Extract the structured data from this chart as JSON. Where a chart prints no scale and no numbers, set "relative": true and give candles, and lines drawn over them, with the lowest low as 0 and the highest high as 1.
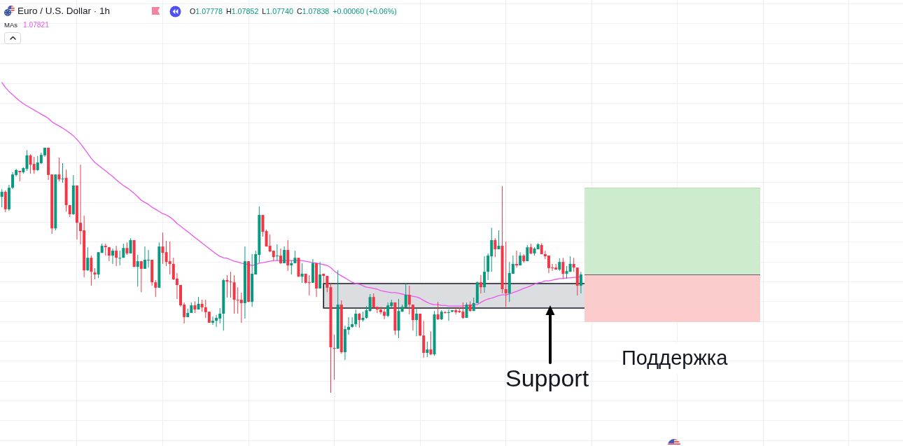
{
  "chart_data": {
    "type": "candlestick",
    "title": "Euro / U.S. Dollar · 1h",
    "categories": [
      null,
      null,
      null,
      null,
      null,
      null,
      null,
      null,
      null,
      null,
      null,
      null,
      null,
      null,
      null,
      null,
      null,
      null,
      null,
      null,
      null,
      null,
      null,
      null,
      null,
      null,
      null,
      null,
      null,
      null,
      null,
      null,
      null,
      null,
      null,
      null,
      null,
      null,
      null,
      null,
      null,
      null,
      null,
      null,
      null,
      null,
      null,
      null,
      null,
      null,
      null,
      null,
      null,
      null,
      null,
      null,
      null,
      null,
      null,
      null,
      null,
      null,
      null,
      null,
      null,
      null,
      null,
      null,
      null,
      null,
      null,
      null,
      null,
      null,
      null,
      null,
      null,
      null,
      null,
      null,
      null,
      null,
      null,
      null,
      null,
      null,
      null,
      null,
      null,
      null,
      null,
      null,
      null,
      null,
      null,
      null,
      null,
      null,
      null,
      null,
      null,
      null,
      null,
      null,
      null,
      null,
      null,
      null,
      null,
      null,
      null,
      null,
      null,
      null,
      null,
      null,
      null,
      null,
      null,
      null,
      null,
      null,
      null,
      null,
      null,
      null,
      null,
      null,
      null,
      null,
      null,
      null,
      null,
      null,
      null,
      null,
      null,
      null,
      null,
      null,
      null,
      null,
      null,
      null,
      null,
      null,
      null,
      null,
      null,
      null,
      null,
      null,
      null,
      null,
      null,
      null,
      null,
      null,
      null,
      null,
      null,
      null,
      null
    ],
    "ohlc": [
      [
        0.8,
        0.831,
        0.757,
        0.82
      ],
      [
        0.82,
        0.826,
        0.737,
        0.749
      ],
      [
        0.749,
        0.849,
        0.743,
        0.837
      ],
      [
        0.837,
        0.9,
        0.831,
        0.891
      ],
      [
        0.889,
        0.914,
        0.883,
        0.909
      ],
      [
        0.906,
        0.906,
        0.863,
        0.9
      ],
      [
        0.9,
        0.92,
        0.894,
        0.917
      ],
      [
        0.914,
        0.991,
        0.906,
        0.969
      ],
      [
        0.969,
        0.974,
        0.894,
        0.931
      ],
      [
        0.934,
        0.963,
        0.894,
        0.909
      ],
      [
        0.909,
        0.966,
        0.906,
        0.94
      ],
      [
        0.937,
        0.98,
        0.934,
        0.971
      ],
      [
        0.969,
        1,
        0.963,
        1
      ],
      [
        1,
        1,
        0.869,
        0.889
      ],
      [
        0.891,
        0.891,
        0.649,
        0.671
      ],
      [
        0.671,
        0.891,
        0.663,
        0.891
      ],
      [
        0.891,
        0.96,
        0.863,
        0.871
      ],
      [
        0.871,
        0.937,
        0.857,
        0.874
      ],
      [
        0.877,
        0.911,
        0.74,
        0.766
      ],
      [
        0.766,
        0.766,
        0.717,
        0.729
      ],
      [
        0.729,
        0.889,
        0.726,
        0.846
      ],
      [
        0.846,
        0.846,
        0.626,
        0.694
      ],
      [
        0.694,
        0.931,
        0.606,
        0.66
      ],
      [
        0.663,
        0.723,
        0.471,
        0.5
      ],
      [
        0.5,
        0.594,
        0.497,
        0.551
      ],
      [
        0.551,
        0.56,
        0.437,
        0.494
      ],
      [
        0.491,
        0.509,
        0.463,
        0.483
      ],
      [
        0.483,
        0.574,
        0.469,
        0.574
      ],
      [
        0.571,
        0.609,
        0.571,
        0.6
      ],
      [
        0.6,
        0.609,
        0.56,
        0.594
      ],
      [
        0.594,
        0.594,
        0.537,
        0.56
      ],
      [
        0.56,
        0.589,
        0.526,
        0.58
      ],
      [
        0.58,
        0.6,
        0.517,
        0.551
      ],
      [
        0.549,
        0.58,
        0.52,
        0.551
      ],
      [
        0.551,
        0.609,
        0.551,
        0.591
      ],
      [
        0.591,
        0.614,
        0.563,
        0.569
      ],
      [
        0.569,
        0.631,
        0.569,
        0.623
      ],
      [
        0.623,
        0.623,
        0.514,
        0.514
      ],
      [
        0.514,
        0.563,
        0.434,
        0.537
      ],
      [
        0.537,
        0.537,
        0.411,
        0.506
      ],
      [
        0.506,
        0.597,
        0.506,
        0.543
      ],
      [
        0.54,
        0.583,
        0.511,
        0.543
      ],
      [
        0.543,
        0.543,
        0.437,
        0.451
      ],
      [
        0.451,
        0.46,
        0.391,
        0.429
      ],
      [
        0.429,
        0.614,
        0.429,
        0.597
      ],
      [
        0.597,
        0.654,
        0.526,
        0.571
      ],
      [
        0.574,
        0.62,
        0.517,
        0.534
      ],
      [
        0.537,
        0.617,
        0.483,
        0.526
      ],
      [
        0.526,
        0.551,
        0.46,
        0.463
      ],
      [
        0.466,
        0.489,
        0.383,
        0.44
      ],
      [
        0.44,
        0.44,
        0.351,
        0.357
      ],
      [
        0.36,
        0.369,
        0.283,
        0.309
      ],
      [
        0.309,
        0.343,
        0.309,
        0.326
      ],
      [
        0.326,
        0.369,
        0.326,
        0.357
      ],
      [
        0.357,
        0.374,
        0.326,
        0.34
      ],
      [
        0.34,
        0.391,
        0.34,
        0.363
      ],
      [
        0.363,
        0.38,
        0.331,
        0.349
      ],
      [
        0.349,
        0.38,
        0.306,
        0.329
      ],
      [
        0.331,
        0.331,
        0.286,
        0.286
      ],
      [
        0.286,
        0.311,
        0.277,
        0.294
      ],
      [
        0.294,
        0.317,
        0.269,
        0.306
      ],
      [
        0.303,
        0.346,
        0.283,
        0.323
      ],
      [
        0.323,
        0.466,
        0.254,
        0.46
      ],
      [
        0.46,
        0.48,
        0.389,
        0.454
      ],
      [
        0.454,
        0.494,
        0.389,
        0.451
      ],
      [
        0.451,
        0.48,
        0.323,
        0.38
      ],
      [
        0.38,
        0.431,
        0.323,
        0.377
      ],
      [
        0.38,
        0.409,
        0.286,
        0.366
      ],
      [
        0.366,
        0.597,
        0.303,
        0.537
      ],
      [
        0.537,
        0.537,
        0.371,
        0.371
      ],
      [
        0.371,
        0.566,
        0.351,
        0.486
      ],
      [
        0.483,
        0.58,
        0.483,
        0.566
      ],
      [
        0.563,
        0.76,
        0.531,
        0.726
      ],
      [
        0.726,
        0.726,
        0.637,
        0.657
      ],
      [
        0.66,
        0.666,
        0.597,
        0.597
      ],
      [
        0.6,
        0.646,
        0.574,
        0.577
      ],
      [
        0.58,
        0.58,
        0.54,
        0.554
      ],
      [
        0.557,
        0.606,
        0.54,
        0.56
      ],
      [
        0.56,
        0.589,
        0.526,
        0.529
      ],
      [
        0.529,
        0.597,
        0.529,
        0.583
      ],
      [
        0.583,
        0.623,
        0.497,
        0.52
      ],
      [
        0.52,
        0.54,
        0.483,
        0.529
      ],
      [
        0.529,
        0.58,
        0.529,
        0.551
      ],
      [
        0.551,
        0.551,
        0.474,
        0.474
      ],
      [
        0.474,
        0.529,
        0.449,
        0.486
      ],
      [
        0.486,
        0.486,
        0.446,
        0.449
      ],
      [
        0.451,
        0.48,
        0.397,
        0.449
      ],
      [
        0.449,
        0.546,
        0.449,
        0.529
      ],
      [
        0.529,
        0.529,
        0.391,
        0.426
      ],
      [
        0.426,
        0.534,
        0.426,
        0.483
      ],
      [
        0.486,
        0.486,
        0.449,
        0.477
      ],
      [
        0.477,
        0.477,
        0.411,
        0.429
      ],
      [
        0.431,
        0.446,
        0,
        0.186
      ],
      [
        0.183,
        0.237,
        0.054,
        0.18
      ],
      [
        0.18,
        0.5,
        0.18,
        0.36
      ],
      [
        0.36,
        0.377,
        0.16,
        0.166
      ],
      [
        0.166,
        0.274,
        0.134,
        0.26
      ],
      [
        0.257,
        0.309,
        0.237,
        0.269
      ],
      [
        0.269,
        0.309,
        0.266,
        0.28
      ],
      [
        0.28,
        0.34,
        0.269,
        0.323
      ],
      [
        0.323,
        0.326,
        0.266,
        0.297
      ],
      [
        0.297,
        0.331,
        0.291,
        0.306
      ],
      [
        0.306,
        0.354,
        0.303,
        0.337
      ],
      [
        0.334,
        0.403,
        0.331,
        0.391
      ],
      [
        0.391,
        0.406,
        0.346,
        0.349
      ],
      [
        0.351,
        0.351,
        0.326,
        0.34
      ],
      [
        0.34,
        0.351,
        0.32,
        0.329
      ],
      [
        0.331,
        0.346,
        0.3,
        0.314
      ],
      [
        0.314,
        0.369,
        0.309,
        0.357
      ],
      [
        0.354,
        0.38,
        0.346,
        0.369
      ],
      [
        0.369,
        0.369,
        0.237,
        0.254
      ],
      [
        0.254,
        0.383,
        0.223,
        0.334
      ],
      [
        0.331,
        0.36,
        0.331,
        0.351
      ],
      [
        0.349,
        0.446,
        0.346,
        0.4
      ],
      [
        0.4,
        0.437,
        0.32,
        0.36
      ],
      [
        0.36,
        0.36,
        0.254,
        0.297
      ],
      [
        0.297,
        0.346,
        0.231,
        0.323
      ],
      [
        0.323,
        0.323,
        0.231,
        0.234
      ],
      [
        0.234,
        0.294,
        0.143,
        0.163
      ],
      [
        0.163,
        0.209,
        0.146,
        0.177
      ],
      [
        0.177,
        0.251,
        0.154,
        0.157
      ],
      [
        0.157,
        0.334,
        0.151,
        0.32
      ],
      [
        0.32,
        0.371,
        0.297,
        0.3
      ],
      [
        0.3,
        0.337,
        0.297,
        0.331
      ],
      [
        0.329,
        0.334,
        0.323,
        0.326
      ],
      [
        0.326,
        0.34,
        0.294,
        0.329
      ],
      [
        0.331,
        0.337,
        0.329,
        0.337
      ],
      [
        0.337,
        0.346,
        0.32,
        0.329
      ],
      [
        0.334,
        0.349,
        0.326,
        0.329
      ],
      [
        0.331,
        0.369,
        0.303,
        0.306
      ],
      [
        0.306,
        0.369,
        0.306,
        0.36
      ],
      [
        0.36,
        0.374,
        0.331,
        0.334
      ],
      [
        0.334,
        0.389,
        0.334,
        0.366
      ],
      [
        0.366,
        0.454,
        0.366,
        0.451
      ],
      [
        0.451,
        0.48,
        0.406,
        0.431
      ],
      [
        0.431,
        0.557,
        0.409,
        0.494
      ],
      [
        0.494,
        0.569,
        0.46,
        0.56
      ],
      [
        0.557,
        0.674,
        0.494,
        0.623
      ],
      [
        0.623,
        0.631,
        0.554,
        0.586
      ],
      [
        0.586,
        0.663,
        0.586,
        0.6
      ],
      [
        0.6,
        0.843,
        0.406,
        0.423
      ],
      [
        0.423,
        0.617,
        0.351,
        0.406
      ],
      [
        0.406,
        0.534,
        0.371,
        0.489
      ],
      [
        0.486,
        0.56,
        0.486,
        0.526
      ],
      [
        0.526,
        0.58,
        0.511,
        0.52
      ],
      [
        0.52,
        0.574,
        0.52,
        0.56
      ],
      [
        0.56,
        0.566,
        0.531,
        0.537
      ],
      [
        0.537,
        0.603,
        0.537,
        0.594
      ],
      [
        0.594,
        0.609,
        0.566,
        0.569
      ],
      [
        0.569,
        0.594,
        0.56,
        0.589
      ],
      [
        0.586,
        0.611,
        0.586,
        0.606
      ],
      [
        0.603,
        0.611,
        0.566,
        0.566
      ],
      [
        0.566,
        0.58,
        0.546,
        0.557
      ],
      [
        0.56,
        0.56,
        0.489,
        0.509
      ],
      [
        0.511,
        0.526,
        0.497,
        0.509
      ],
      [
        0.511,
        0.526,
        0.503,
        0.503
      ],
      [
        0.503,
        0.549,
        0.497,
        0.534
      ],
      [
        0.534,
        0.551,
        0.466,
        0.486
      ],
      [
        0.486,
        0.517,
        0.466,
        0.497
      ],
      [
        0.494,
        0.557,
        0.494,
        0.526
      ],
      [
        0.526,
        0.551,
        0.494,
        0.511
      ],
      [
        0.511,
        0.511,
        0.397,
        0.437
      ],
      [
        0.437,
        0.494,
        0.406,
        0.483
      ]
    ],
    "colors": [
      "#089981",
      "#f23645",
      "#089981",
      "#089981",
      "#089981",
      "#f23645",
      "#089981",
      "#089981",
      "#f23645",
      "#f23645",
      "#089981",
      "#089981",
      "#089981",
      "#f23645",
      "#f23645",
      "#089981",
      "#f23645",
      "#089981",
      "#f23645",
      "#f23645",
      "#089981",
      "#f23645",
      "#f23645",
      "#f23645",
      "#089981",
      "#f23645",
      "#f23645",
      "#089981",
      "#089981",
      "#f23645",
      "#f23645",
      "#089981",
      "#f23645",
      "#089981",
      "#089981",
      "#f23645",
      "#089981",
      "#f23645",
      "#089981",
      "#f23645",
      "#089981",
      "#089981",
      "#f23645",
      "#f23645",
      "#089981",
      "#f23645",
      "#f23645",
      "#f23645",
      "#f23645",
      "#f23645",
      "#f23645",
      "#f23645",
      "#089981",
      "#089981",
      "#f23645",
      "#089981",
      "#f23645",
      "#f23645",
      "#f23645",
      "#089981",
      "#089981",
      "#089981",
      "#089981",
      "#f23645",
      "#f23645",
      "#f23645",
      "#f23645",
      "#f23645",
      "#089981",
      "#f23645",
      "#089981",
      "#089981",
      "#089981",
      "#f23645",
      "#f23645",
      "#f23645",
      "#f23645",
      "#089981",
      "#f23645",
      "#089981",
      "#f23645",
      "#089981",
      "#089981",
      "#f23645",
      "#089981",
      "#f23645",
      "#f23645",
      "#089981",
      "#f23645",
      "#089981",
      "#f23645",
      "#f23645",
      "#f23645",
      "#f23645",
      "#089981",
      "#f23645",
      "#089981",
      "#089981",
      "#089981",
      "#089981",
      "#f23645",
      "#089981",
      "#089981",
      "#089981",
      "#f23645",
      "#f23645",
      "#f23645",
      "#f23645",
      "#089981",
      "#089981",
      "#f23645",
      "#089981",
      "#089981",
      "#089981",
      "#f23645",
      "#f23645",
      "#089981",
      "#f23645",
      "#f23645",
      "#089981",
      "#f23645",
      "#089981",
      "#f23645",
      "#089981",
      "#f23645",
      "#089981",
      "#089981",
      "#f23645",
      "#f23645",
      "#f23645",
      "#089981",
      "#f23645",
      "#089981",
      "#089981",
      "#f23645",
      "#089981",
      "#089981",
      "#089981",
      "#f23645",
      "#089981",
      "#f23645",
      "#f23645",
      "#089981",
      "#089981",
      "#f23645",
      "#089981",
      "#f23645",
      "#089981",
      "#f23645",
      "#089981",
      "#089981",
      "#f23645",
      "#f23645",
      "#f23645",
      "#f23645",
      "#f23645",
      "#089981",
      "#f23645",
      "#089981",
      "#089981",
      "#f23645",
      "#f23645",
      "#089981"
    ],
    "series": [
      {
        "name": "MAs",
        "type": "line",
        "color": "#ee55ee",
        "values": [
          1.266,
          1.246,
          1.229,
          1.217,
          1.203,
          1.191,
          1.18,
          1.171,
          1.163,
          1.154,
          1.146,
          1.137,
          1.129,
          1.12,
          1.106,
          1.097,
          1.089,
          1.08,
          1.071,
          1.06,
          1.049,
          1.034,
          1.017,
          0.997,
          0.977,
          0.957,
          0.94,
          0.929,
          0.917,
          0.906,
          0.894,
          0.883,
          0.869,
          0.857,
          0.846,
          0.837,
          0.826,
          0.814,
          0.8,
          0.786,
          0.777,
          0.769,
          0.757,
          0.749,
          0.74,
          0.731,
          0.726,
          0.717,
          0.706,
          0.691,
          0.68,
          0.669,
          0.657,
          0.646,
          0.634,
          0.623,
          0.611,
          0.6,
          0.589,
          0.577,
          0.566,
          0.557,
          0.551,
          0.549,
          0.543,
          0.537,
          0.534,
          0.529,
          0.526,
          0.523,
          0.52,
          0.523,
          0.529,
          0.531,
          0.534,
          0.537,
          0.54,
          0.54,
          0.54,
          0.54,
          0.54,
          0.54,
          0.54,
          0.54,
          0.54,
          0.537,
          0.534,
          0.531,
          0.529,
          0.526,
          0.523,
          0.52,
          0.511,
          0.497,
          0.486,
          0.477,
          0.469,
          0.46,
          0.451,
          0.446,
          0.443,
          0.437,
          0.431,
          0.429,
          0.426,
          0.423,
          0.417,
          0.414,
          0.411,
          0.409,
          0.409,
          0.406,
          0.403,
          0.4,
          0.397,
          0.394,
          0.391,
          0.386,
          0.377,
          0.369,
          0.363,
          0.36,
          0.36,
          0.357,
          0.357,
          0.354,
          0.354,
          0.354,
          0.354,
          0.354,
          0.357,
          0.357,
          0.36,
          0.36,
          0.369,
          0.377,
          0.383,
          0.386,
          0.391,
          0.397,
          0.4,
          0.4,
          0.403,
          0.409,
          0.414,
          0.42,
          0.426,
          0.431,
          0.437,
          0.443,
          0.449,
          0.451,
          0.457,
          0.457,
          0.46,
          0.463,
          0.466,
          0.466,
          0.469,
          0.469,
          0.471,
          0.471,
          0.474
        ]
      }
    ],
    "relative": true,
    "grid": true,
    "legend": "top left",
    "bands": [
      {
        "axis": "y",
        "from": 0.346,
        "to": 0.446,
        "color": "#dcdde0"
      }
    ],
    "annotations": [
      "O1.07778",
      "H1.07852",
      "L1.07740",
      "C1.07838",
      "+0.00060 (+0.06%)",
      "1.07821",
      "Support",
      "Поддержка"
    ]
  }
}
